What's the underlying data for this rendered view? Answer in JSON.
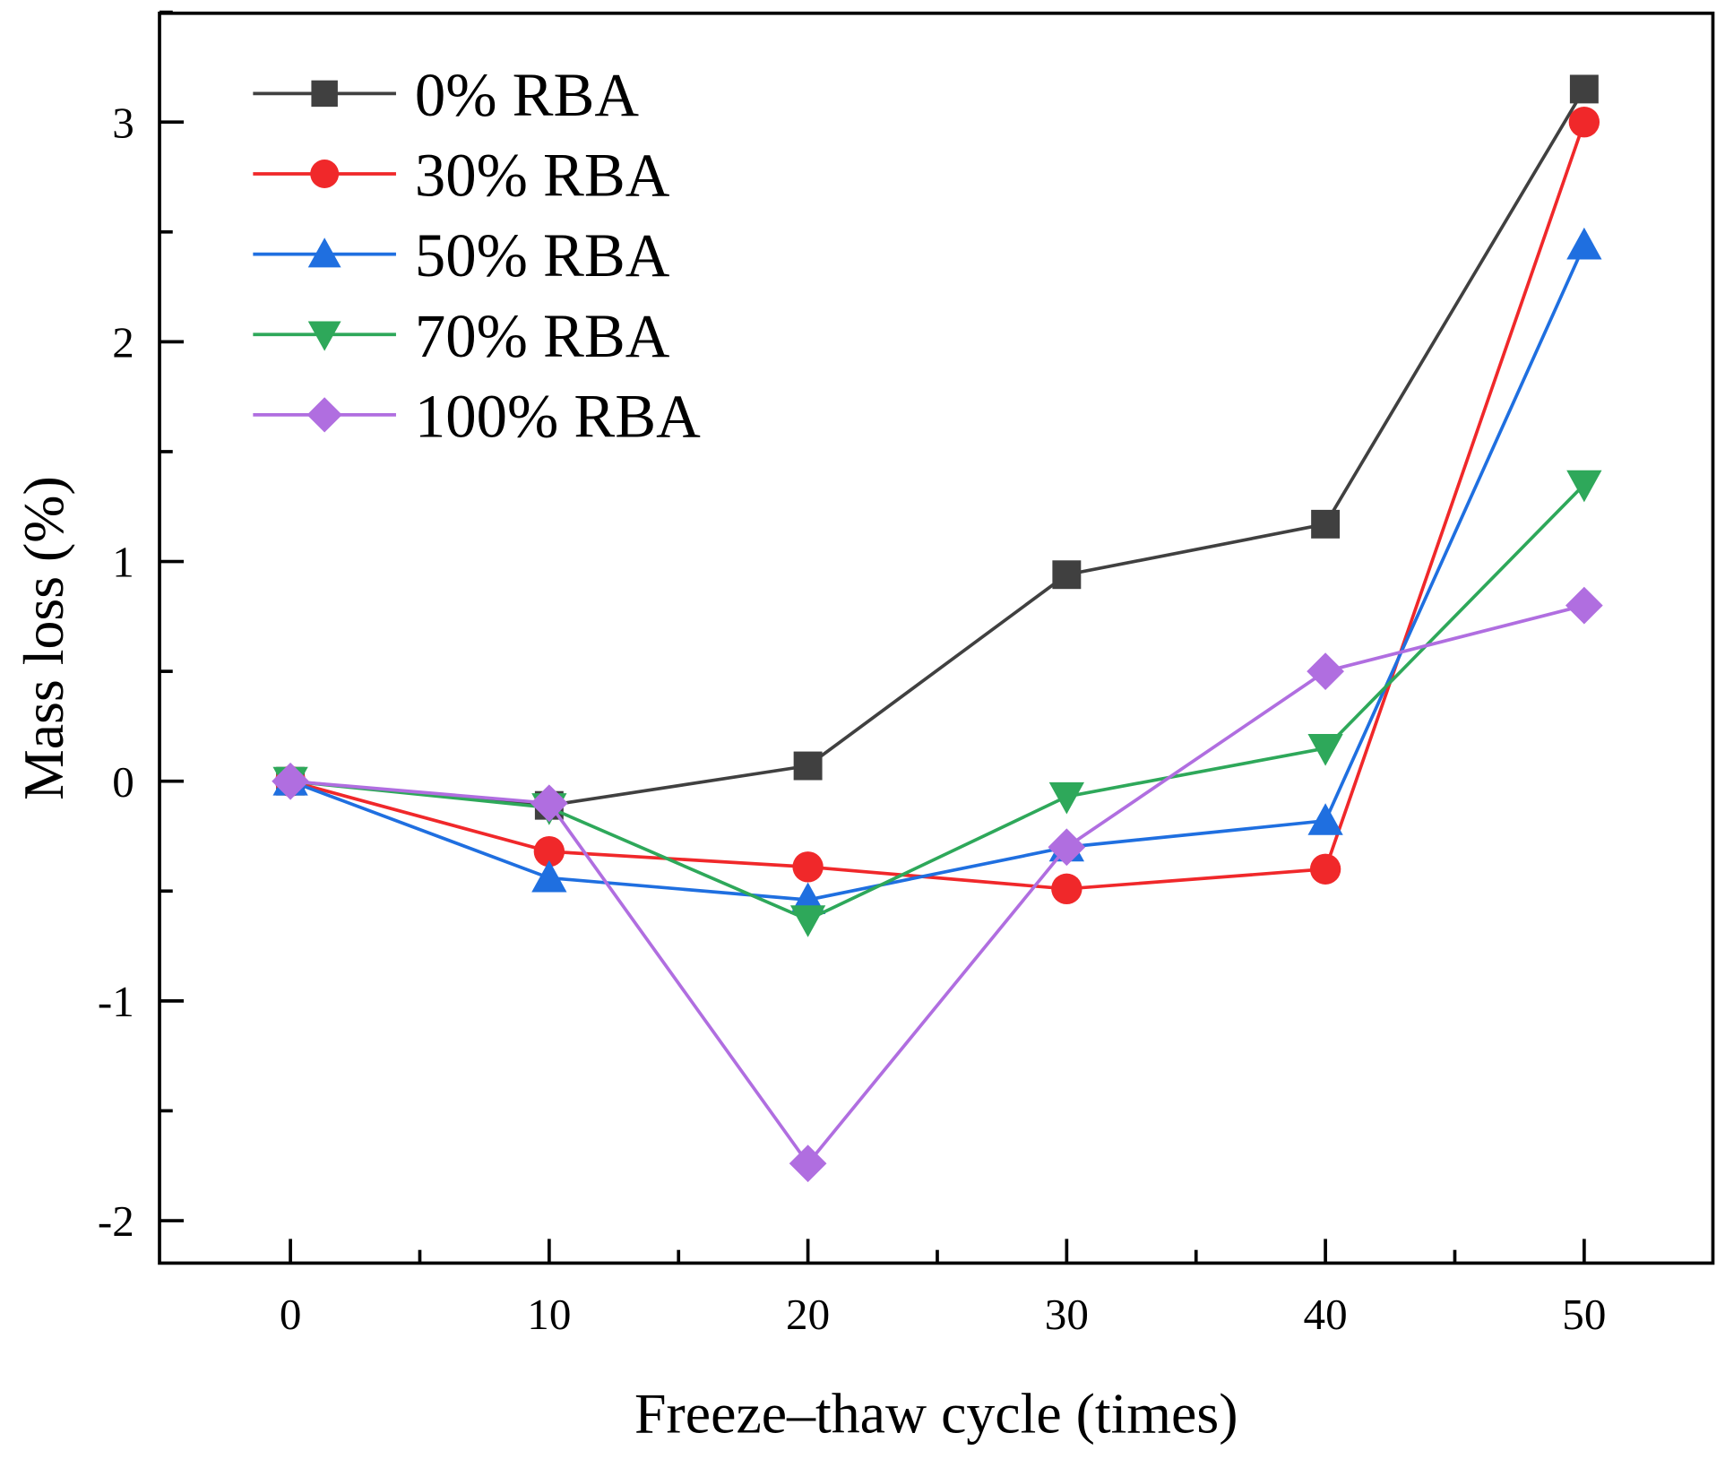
{
  "chart_data": {
    "type": "line",
    "title": "",
    "xlabel": "Freeze–thaw cycle (times)",
    "ylabel": "Mass loss (%)",
    "x": [
      0,
      10,
      20,
      30,
      40,
      50
    ],
    "xlim": [
      -5,
      55
    ],
    "ylim": [
      -2.2,
      3.5
    ],
    "xticks": [
      "0",
      "10",
      "20",
      "30",
      "40",
      "50"
    ],
    "yticks": [
      "-2",
      "-1",
      "0",
      "1",
      "2",
      "3"
    ],
    "grid": false,
    "legend_position": "top-left",
    "series": [
      {
        "name": "0% RBA",
        "color": "#404040",
        "marker": "square",
        "values": [
          0,
          -0.11,
          0.07,
          0.94,
          1.17,
          3.15
        ]
      },
      {
        "name": "30% RBA",
        "color": "#f0282a",
        "marker": "circle",
        "values": [
          0,
          -0.32,
          -0.39,
          -0.49,
          -0.4,
          3.0
        ]
      },
      {
        "name": "50% RBA",
        "color": "#1f6fe0",
        "marker": "triangle-up",
        "values": [
          0,
          -0.44,
          -0.54,
          -0.3,
          -0.18,
          2.44
        ]
      },
      {
        "name": "70% RBA",
        "color": "#2ea85a",
        "marker": "triangle-down",
        "values": [
          0,
          -0.12,
          -0.63,
          -0.07,
          0.15,
          1.35
        ]
      },
      {
        "name": "100% RBA",
        "color": "#b06ee0",
        "marker": "diamond",
        "values": [
          0,
          -0.1,
          -1.74,
          -0.3,
          0.5,
          0.8
        ]
      }
    ]
  }
}
